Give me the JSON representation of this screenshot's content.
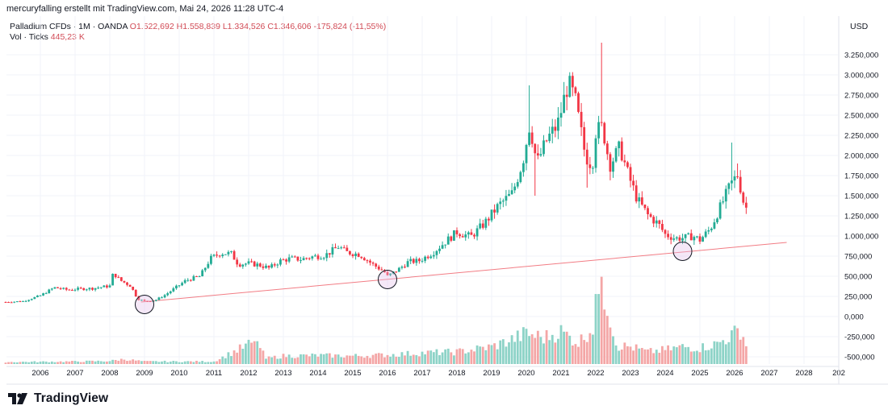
{
  "header": {
    "caption": "mercuryfalling erstellt mit TradingView.com, Mai 24, 2026 11:28 UTC-4"
  },
  "legend": {
    "symbol": "Palladium CFDs · 1M · OANDA",
    "open": "O1.522,692",
    "high": "H1.558,839",
    "low": "L1.334,526",
    "close": "C1.346,606",
    "change": "-175,824 (-11,55%)",
    "volume_label": "Vol · Ticks",
    "volume_value": "445,23 K"
  },
  "currency": "USD",
  "brand": "TradingView",
  "colors": {
    "up": "#22ab94",
    "down": "#f23645",
    "volume_up": "#8dd3c7",
    "volume_down": "#f4a6a6",
    "trendline": "#f27c84",
    "grid": "#f0f3fa"
  },
  "chart_data": {
    "type": "candlestick",
    "title": "",
    "xlabel": "",
    "ylabel": "",
    "y_tick_labels": [
      "-500,000",
      "-250,000",
      "0,000",
      "250,000",
      "500,000",
      "750,000",
      "1.000,000",
      "1.250,000",
      "1.500,000",
      "1.750,000",
      "2.000,000",
      "2.250,000",
      "2.500,000",
      "2.750,000",
      "3.000,000",
      "3.250,000"
    ],
    "y_ticks": [
      -500,
      -250,
      0,
      250,
      500,
      750,
      1000,
      1250,
      1500,
      1750,
      2000,
      2250,
      2500,
      2750,
      3000,
      3250
    ],
    "ylim": [
      -600,
      3500
    ],
    "x_ticks": [
      "2006",
      "2007",
      "2008",
      "2009",
      "2010",
      "2011",
      "2012",
      "2013",
      "2014",
      "2015",
      "2016",
      "2017",
      "2018",
      "2019",
      "2020",
      "2021",
      "2022",
      "2023",
      "2024",
      "2025",
      "2026",
      "2027",
      "2028",
      "202"
    ],
    "grid": true,
    "approx_close_path": [
      [
        2005.0,
        180
      ],
      [
        2005.5,
        190
      ],
      [
        2006.0,
        260
      ],
      [
        2006.4,
        360
      ],
      [
        2006.8,
        330
      ],
      [
        2007.0,
        340
      ],
      [
        2007.5,
        350
      ],
      [
        2008.0,
        380
      ],
      [
        2008.1,
        540
      ],
      [
        2008.3,
        450
      ],
      [
        2008.6,
        380
      ],
      [
        2008.8,
        220
      ],
      [
        2009.0,
        190
      ],
      [
        2009.3,
        200
      ],
      [
        2009.6,
        270
      ],
      [
        2009.9,
        360
      ],
      [
        2010.2,
        450
      ],
      [
        2010.6,
        500
      ],
      [
        2010.9,
        720
      ],
      [
        2011.2,
        790
      ],
      [
        2011.5,
        780
      ],
      [
        2011.7,
        650
      ],
      [
        2012.0,
        660
      ],
      [
        2012.3,
        640
      ],
      [
        2012.6,
        600
      ],
      [
        2012.9,
        690
      ],
      [
        2013.2,
        720
      ],
      [
        2013.5,
        710
      ],
      [
        2013.8,
        740
      ],
      [
        2014.2,
        760
      ],
      [
        2014.6,
        870
      ],
      [
        2014.8,
        800
      ],
      [
        2015.2,
        770
      ],
      [
        2015.6,
        640
      ],
      [
        2015.9,
        560
      ],
      [
        2016.0,
        500
      ],
      [
        2016.3,
        580
      ],
      [
        2016.6,
        680
      ],
      [
        2016.9,
        690
      ],
      [
        2017.3,
        790
      ],
      [
        2017.7,
        940
      ],
      [
        2018.0,
        1050
      ],
      [
        2018.4,
        990
      ],
      [
        2018.8,
        1160
      ],
      [
        2019.2,
        1380
      ],
      [
        2019.6,
        1530
      ],
      [
        2019.9,
        1930
      ],
      [
        2020.1,
        2400
      ],
      [
        2020.3,
        1900
      ],
      [
        2020.6,
        2200
      ],
      [
        2020.9,
        2380
      ],
      [
        2021.2,
        2900
      ],
      [
        2021.4,
        2700
      ],
      [
        2021.7,
        2000
      ],
      [
        2021.9,
        1870
      ],
      [
        2022.0,
        2300
      ],
      [
        2022.2,
        2350
      ],
      [
        2022.4,
        1880
      ],
      [
        2022.7,
        2100
      ],
      [
        2022.9,
        1800
      ],
      [
        2023.2,
        1450
      ],
      [
        2023.5,
        1260
      ],
      [
        2023.8,
        1150
      ],
      [
        2024.0,
        1020
      ],
      [
        2024.3,
        970
      ],
      [
        2024.6,
        980
      ],
      [
        2024.8,
        1000
      ],
      [
        2025.0,
        950
      ],
      [
        2025.3,
        1090
      ],
      [
        2025.6,
        1370
      ],
      [
        2025.9,
        1650
      ],
      [
        2026.1,
        1770
      ],
      [
        2026.2,
        1520
      ],
      [
        2026.3,
        1350
      ]
    ],
    "volume_k_ticks_approx": [
      [
        2005.0,
        20
      ],
      [
        2007.0,
        25
      ],
      [
        2008.0,
        30
      ],
      [
        2008.4,
        48
      ],
      [
        2009.0,
        25
      ],
      [
        2011.0,
        25
      ],
      [
        2012.2,
        225
      ],
      [
        2012.5,
        55
      ],
      [
        2013.0,
        80
      ],
      [
        2014.0,
        85
      ],
      [
        2015.0,
        80
      ],
      [
        2016.0,
        90
      ],
      [
        2017.0,
        110
      ],
      [
        2018.0,
        120
      ],
      [
        2019.0,
        170
      ],
      [
        2019.5,
        230
      ],
      [
        2020.0,
        300
      ],
      [
        2020.5,
        260
      ],
      [
        2021.0,
        320
      ],
      [
        2021.5,
        210
      ],
      [
        2022.0,
        400
      ],
      [
        2022.1,
        860
      ],
      [
        2022.3,
        650
      ],
      [
        2022.6,
        180
      ],
      [
        2023.0,
        170
      ],
      [
        2023.5,
        120
      ],
      [
        2024.0,
        140
      ],
      [
        2024.5,
        170
      ],
      [
        2025.0,
        160
      ],
      [
        2025.5,
        200
      ],
      [
        2025.8,
        260
      ],
      [
        2026.0,
        300
      ],
      [
        2026.2,
        350
      ],
      [
        2026.3,
        190
      ]
    ],
    "annotations": {
      "trendline": {
        "from": [
          2008.9,
          180
        ],
        "to": [
          2027.5,
          920
        ]
      },
      "circled_lows": [
        [
          2009.0,
          150
        ],
        [
          2016.0,
          460
        ],
        [
          2024.5,
          810
        ]
      ]
    }
  }
}
